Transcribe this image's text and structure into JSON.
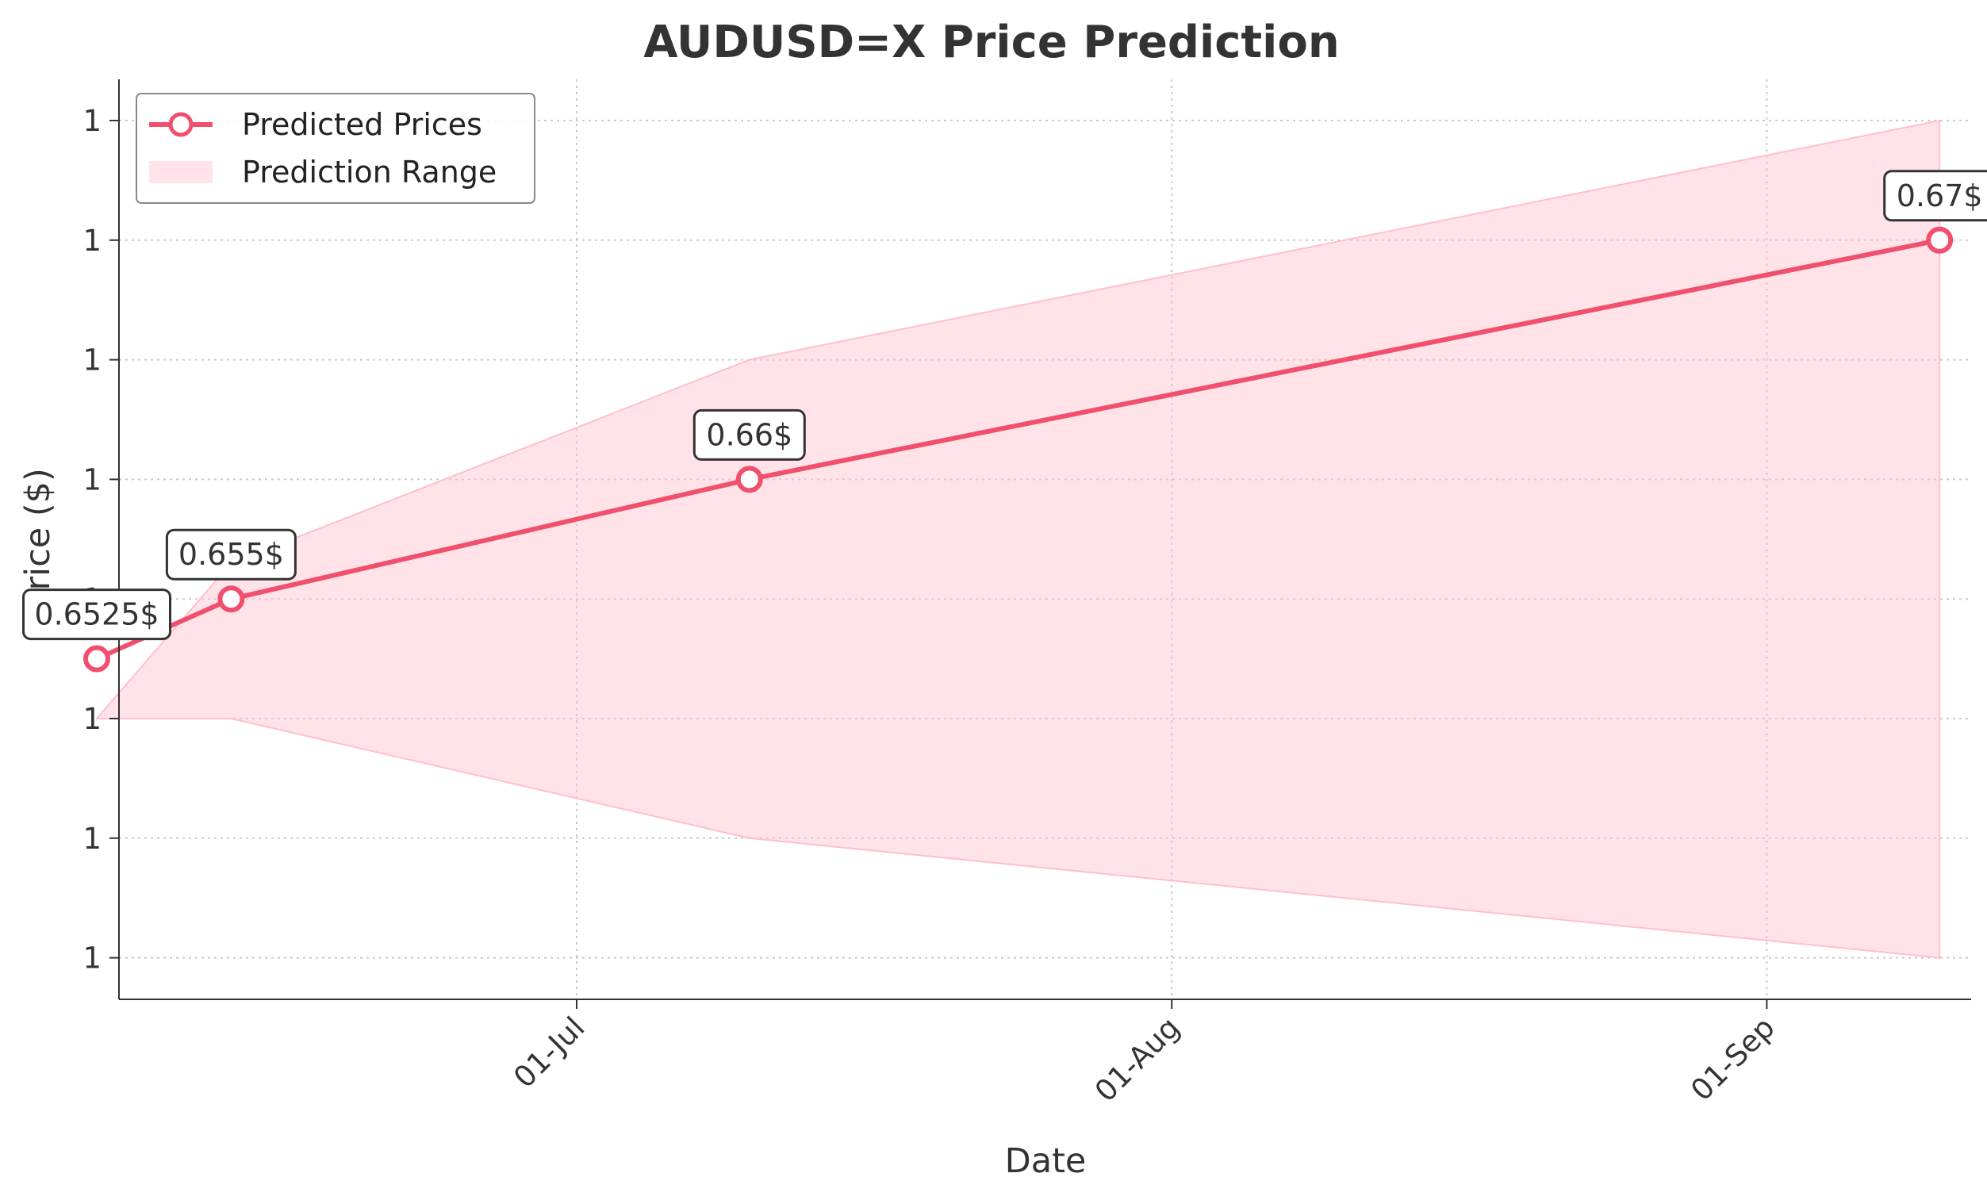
{
  "chart_data": {
    "type": "line",
    "title": "AUDUSD=X Price Prediction",
    "xlabel": "Date",
    "ylabel": "Price ($)",
    "x_ticks": [
      "01-Jul",
      "01-Aug",
      "01-Sep"
    ],
    "y_ticks": [
      "1",
      "1",
      "1",
      "1",
      "1",
      "1",
      "1",
      "1"
    ],
    "ylim": [
      0.64,
      0.675
    ],
    "grid": true,
    "legend_position": "top-left",
    "x": [
      "06-06",
      "06-13",
      "07-10",
      "09-10"
    ],
    "series": [
      {
        "name": "Predicted Prices",
        "values": [
          0.6525,
          0.655,
          0.66,
          0.67
        ],
        "labels": [
          "0.6525$",
          "0.655$",
          "0.66$",
          "0.67$"
        ],
        "color": "#f0506e"
      }
    ],
    "range": {
      "name": "Prediction Range",
      "lower": [
        0.65,
        0.65,
        0.645,
        0.64
      ],
      "upper": [
        0.65,
        0.6565,
        0.665,
        0.675
      ],
      "color": "#ffc0cb"
    }
  }
}
